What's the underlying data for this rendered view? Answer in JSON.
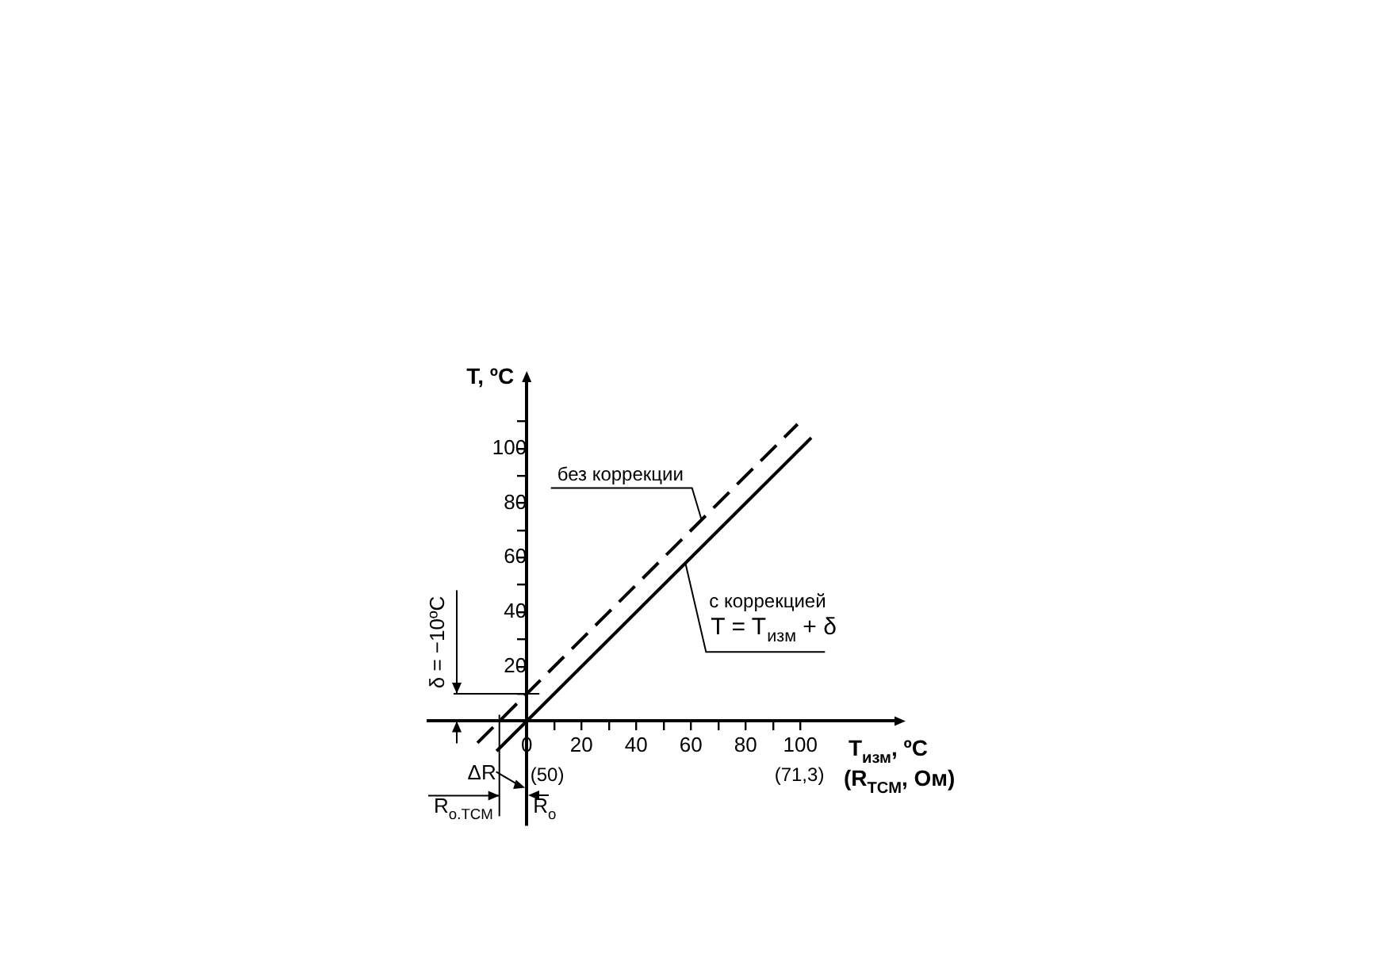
{
  "chart_data": {
    "type": "line",
    "xlabel": "T$_{изм}$, ºC",
    "x2label": "(R$_{ТСМ}$, Ом)",
    "ylabel": "T, ºC",
    "xlim": [
      -36,
      135
    ],
    "ylim": [
      -38,
      125
    ],
    "xticks": [
      {
        "value": 0,
        "label": "0"
      },
      {
        "value": 10,
        "label": null
      },
      20,
      {
        "value": 30,
        "label": null
      },
      40,
      {
        "value": 50,
        "label": null
      },
      60,
      {
        "value": 70,
        "label": null
      },
      80,
      {
        "value": 90,
        "label": null
      },
      100
    ],
    "yticks": [
      {
        "value": 10,
        "label": null
      },
      20,
      {
        "value": 30,
        "label": null
      },
      40,
      {
        "value": 50,
        "label": null
      },
      60,
      {
        "value": 70,
        "label": null
      },
      80,
      {
        "value": 90,
        "label": null
      },
      100,
      {
        "value": 110,
        "label": null
      }
    ],
    "x2lim": [
      39.95,
      79.47
    ],
    "x2ticks": [
      {
        "value": 50,
        "label": "(50)"
      },
      {
        "value": 71.3,
        "label": "(71,3)"
      }
    ],
    "series": [
      {
        "name": "без коррекции",
        "color": "#000000",
        "line_style": "dashed",
        "x": [
          -18,
          99
        ],
        "values": [
          -8,
          109
        ]
      },
      {
        "name": "с коррекцией",
        "color": "#000000",
        "line_style": "solid",
        "x": [
          -11,
          104
        ],
        "values": [
          -11,
          104
        ]
      }
    ],
    "marker": "none",
    "grid": false,
    "legend": false,
    "ref_lines": [
      {
        "axis": "y",
        "value": 10
      },
      {
        "axis": "x",
        "value": -10,
        "label": "R$_{о.ТСМ}$"
      }
    ],
    "annotations": [
      {
        "text": "T = T$_{изм}$ + δ",
        "x": 58,
        "y": 58
      },
      "ΔR",
      "δ = −10ºC",
      "R$_{о}$"
    ]
  }
}
